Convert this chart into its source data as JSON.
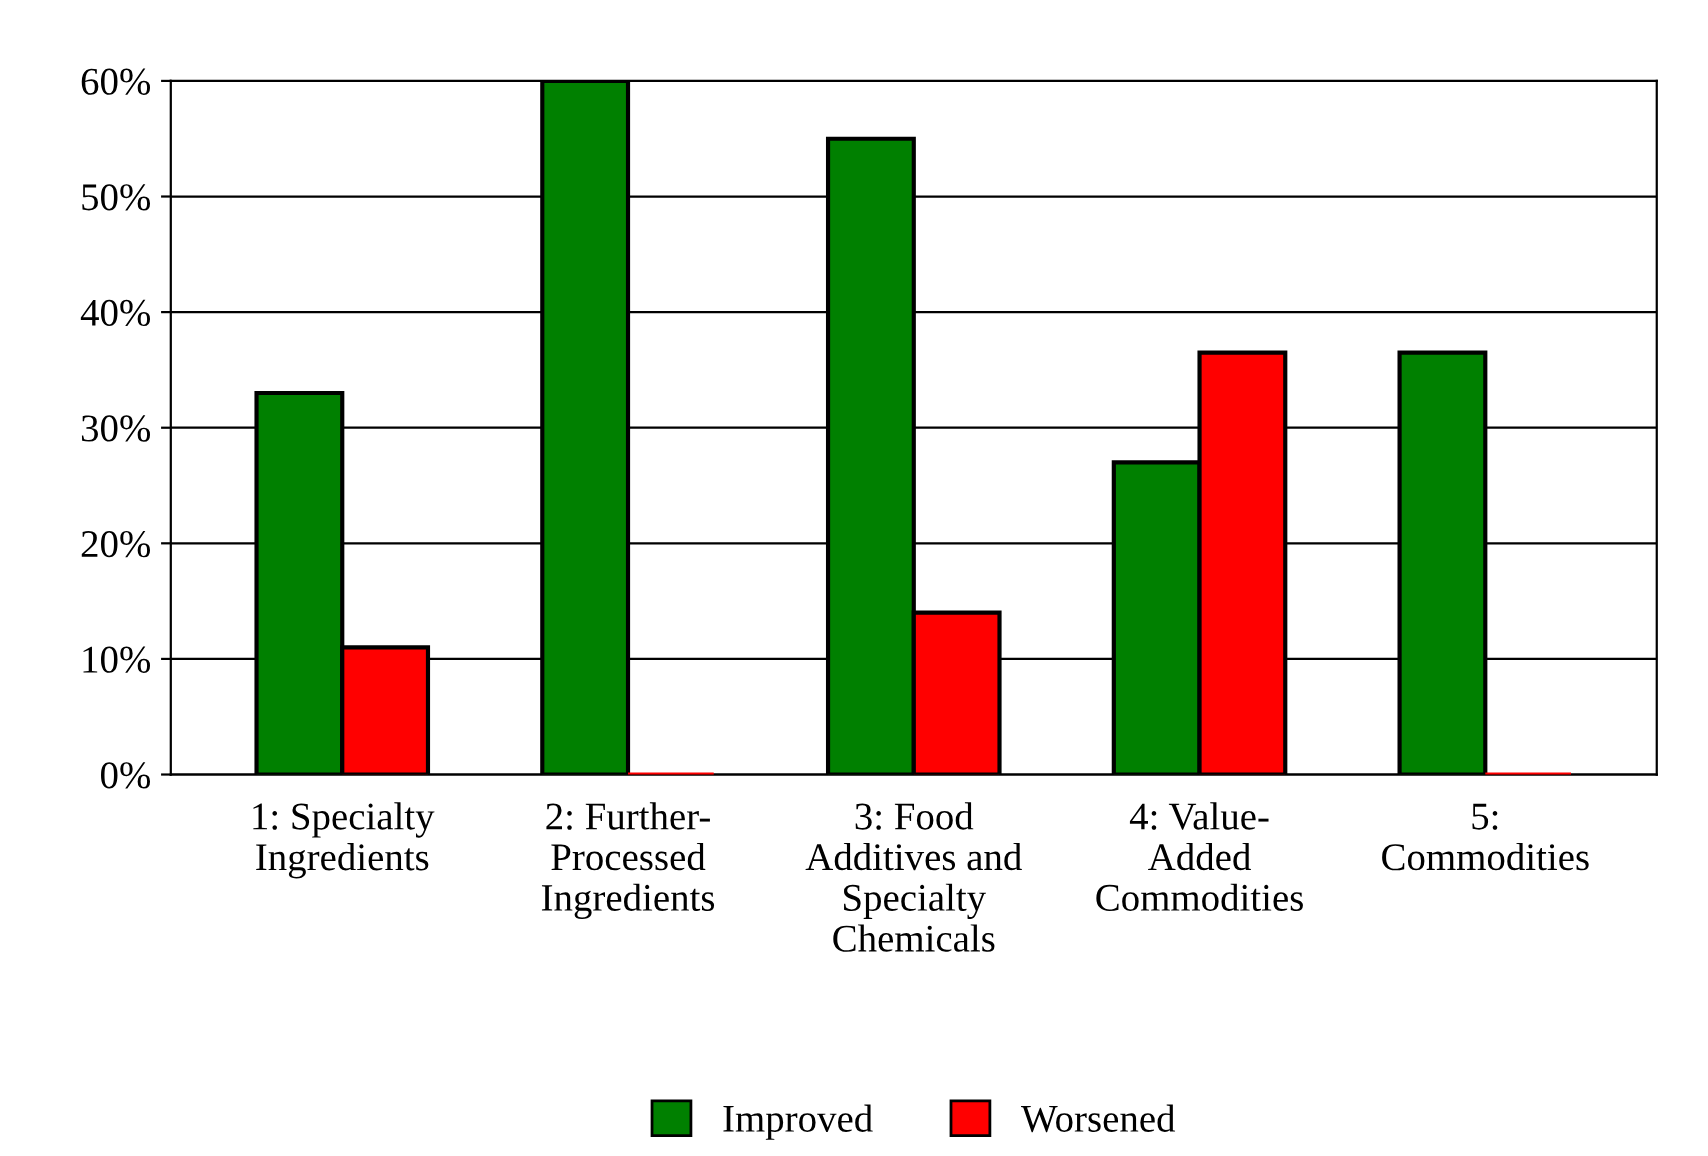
{
  "chart_data": {
    "type": "bar",
    "categories": [
      "1: Specialty\nIngredients",
      "2: Further-\nProcessed\nIngredients",
      "3: Food\nAdditives and\nSpecialty\nChemicals",
      "4: Value-\nAdded\nCommodities",
      "5:\nCommodities"
    ],
    "series": [
      {
        "name": "Improved",
        "color": "#008000",
        "values": [
          33,
          60,
          55,
          27,
          36.5
        ]
      },
      {
        "name": "Worsened",
        "color": "#ff0000",
        "values": [
          11,
          0,
          14,
          36.5,
          0
        ]
      }
    ],
    "ylim": [
      0,
      60
    ],
    "yticks": [
      {
        "value": 0,
        "label": "0%"
      },
      {
        "value": 10,
        "label": "10%"
      },
      {
        "value": 20,
        "label": "20%"
      },
      {
        "value": 30,
        "label": "30%"
      },
      {
        "value": 40,
        "label": "40%"
      },
      {
        "value": 50,
        "label": "50%"
      },
      {
        "value": 60,
        "label": "60%"
      }
    ],
    "grid": "y",
    "legend": "bottom"
  }
}
